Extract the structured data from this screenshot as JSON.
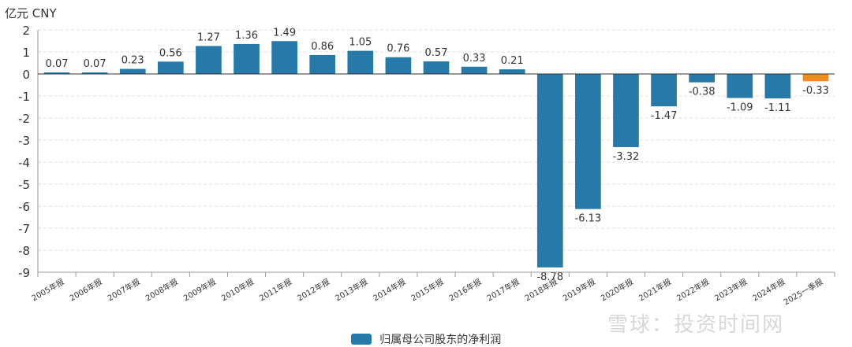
{
  "unit_label": "亿元  CNY",
  "watermark": "雪球：投资时间网",
  "colors": {
    "bar": "#2779a7",
    "highlight": "#f28c1e",
    "grid": "#dcdcdc",
    "axis": "#333333",
    "text": "#333333"
  },
  "chart_data": {
    "type": "bar",
    "categories": [
      "2005年报",
      "2006年报",
      "2007年报",
      "2008年报",
      "2009年报",
      "2010年报",
      "2011年报",
      "2012年报",
      "2013年报",
      "2014年报",
      "2015年报",
      "2016年报",
      "2017年报",
      "2018年报",
      "2019年报",
      "2020年报",
      "2021年报",
      "2022年报",
      "2023年报",
      "2024年报",
      "2025一季报"
    ],
    "series": [
      {
        "name": "归属母公司股东的净利润",
        "values": [
          0.07,
          0.07,
          0.23,
          0.56,
          1.27,
          1.36,
          1.49,
          0.86,
          1.05,
          0.76,
          0.57,
          0.33,
          0.21,
          -8.78,
          -6.13,
          -3.32,
          -1.47,
          -0.38,
          -1.09,
          -1.11,
          -0.33
        ]
      }
    ],
    "data_labels": [
      "0.07",
      "0.07",
      "0.23",
      "0.56",
      "1.27",
      "1.36",
      "1.49",
      "0.86",
      "1.05",
      "0.76",
      "0.57",
      "0.33",
      "0.21",
      "-8.78",
      "-6.13",
      "-3.32",
      "-1.47",
      "-0.38",
      "-1.09",
      "-1.11",
      "-0.33"
    ],
    "highlight_index": 20,
    "ylim": [
      -9,
      2
    ],
    "yticks": [
      2,
      1,
      0,
      -1,
      -2,
      -3,
      -4,
      -5,
      -6,
      -7,
      -8,
      -9
    ],
    "grid": true,
    "legend_position": "bottom-center"
  }
}
